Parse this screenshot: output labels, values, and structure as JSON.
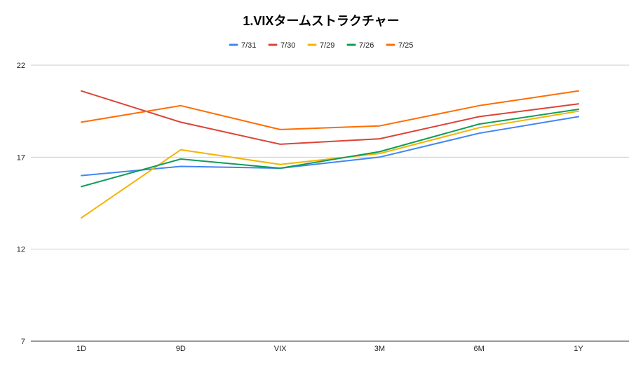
{
  "chart_data": {
    "type": "line",
    "title": "1.VIXタームストラクチャー",
    "xlabel": "",
    "ylabel": "",
    "categories": [
      "1D",
      "9D",
      "VIX",
      "3M",
      "6M",
      "1Y"
    ],
    "ylim": [
      7,
      22
    ],
    "yticks": [
      7,
      12,
      17,
      22
    ],
    "grid": true,
    "legend_position": "top",
    "series": [
      {
        "name": "7/31",
        "color": "#4285f4",
        "values": [
          16.0,
          16.5,
          16.4,
          17.0,
          18.3,
          19.2
        ]
      },
      {
        "name": "7/30",
        "color": "#db4437",
        "values": [
          20.6,
          18.9,
          17.7,
          18.0,
          19.2,
          19.9
        ]
      },
      {
        "name": "7/29",
        "color": "#f4b400",
        "values": [
          13.7,
          17.4,
          16.6,
          17.2,
          18.6,
          19.5
        ]
      },
      {
        "name": "7/26",
        "color": "#0f9d58",
        "values": [
          15.4,
          16.9,
          16.4,
          17.3,
          18.8,
          19.6
        ]
      },
      {
        "name": "7/25",
        "color": "#ff6d00",
        "values": [
          18.9,
          19.8,
          18.5,
          18.7,
          19.8,
          20.6
        ]
      }
    ]
  }
}
